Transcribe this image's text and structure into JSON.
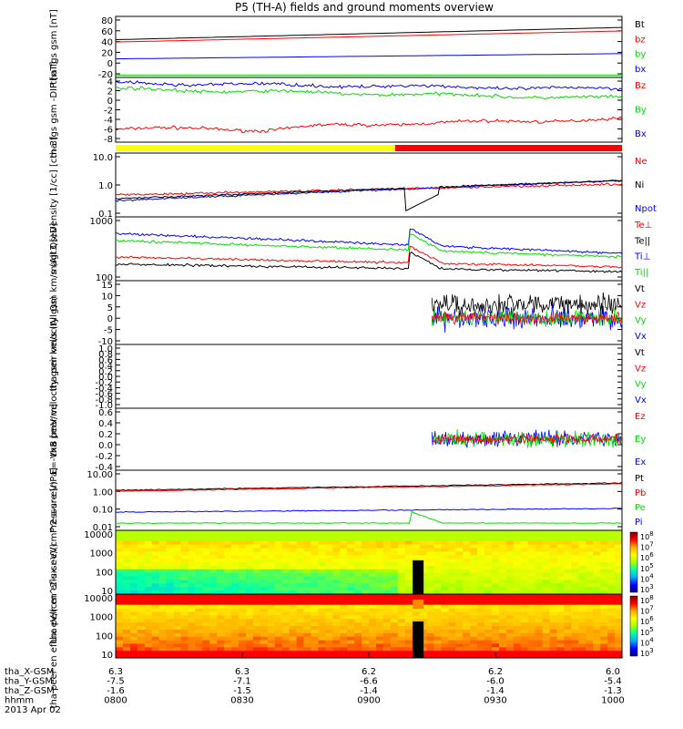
{
  "title": "P5 (TH-A) fields and ground moments overview",
  "colors": {
    "black": "#000000",
    "red": "#ff0000",
    "green": "#00dd00",
    "blue": "#0000ff",
    "yellow": "#ffff00"
  },
  "chart_data": [
    {
      "type": "line",
      "ylabel": "tha fgs gsm [nT]",
      "yticks": [
        "80",
        "60",
        "40",
        "20",
        "0",
        "-20"
      ],
      "ylim": [
        -20,
        85
      ],
      "x": [
        "0800",
        "0830",
        "0900",
        "0930",
        "1000"
      ],
      "series": [
        {
          "name": "Bt",
          "color": "#000000",
          "start": 45,
          "end": 66
        },
        {
          "name": "bz",
          "color": "#ff0000",
          "start": 41,
          "end": 60
        },
        {
          "name": "by",
          "color": "#00dd00",
          "start": -16,
          "end": -16
        },
        {
          "name": "bx",
          "color": "#0000ff",
          "start": 12,
          "end": 21
        }
      ]
    },
    {
      "type": "line",
      "ylabel": "tha fgs gsm -DIP [nT]",
      "yticks": [
        "4",
        "2",
        "0",
        "-2",
        "-4",
        "-6",
        "-8"
      ],
      "ylim": [
        -9.5,
        4.5
      ],
      "series": [
        {
          "name": "Bz",
          "color": "#ff0000",
          "start": -6.8,
          "end": -4.5
        },
        {
          "name": "By",
          "color": "#00dd00",
          "start": 2.0,
          "end": 0.0
        },
        {
          "name": "Bx",
          "color": "#0000ff",
          "start": 3.3,
          "end": 2.0
        }
      ]
    },
    {
      "type": "bar",
      "label": "mode bar",
      "segments": [
        {
          "color": "#ffff00",
          "end_fraction": 0.552
        },
        {
          "color": "#ff0000",
          "end_fraction": 1.0
        }
      ]
    },
    {
      "type": "line",
      "ylabel": "Density [1/cc] [cm-3]",
      "yticks": [
        "10.0",
        "1.0",
        "0.1"
      ],
      "log": true,
      "series": [
        {
          "name": "Ne",
          "color": "#ff0000"
        },
        {
          "name": "Ni",
          "color": "#000000"
        },
        {
          "name": "Npot",
          "color": "#0000ff"
        }
      ]
    },
    {
      "type": "line",
      "ylabel": "magt3 [eV]",
      "yticks": [
        "1000",
        "100"
      ],
      "log": true,
      "series": [
        {
          "name": "Te⊥",
          "color": "#ff0000"
        },
        {
          "name": "Te||",
          "color": "#000000"
        },
        {
          "name": "Ti⊥",
          "color": "#0000ff"
        },
        {
          "name": "Ti||",
          "color": "#00dd00"
        }
      ]
    },
    {
      "type": "line",
      "ylabel": "tha peir velocity gsm km/s (All Qs)",
      "yticks": [
        "15",
        "10",
        "5",
        "0",
        "-5",
        "-10"
      ],
      "series": [
        {
          "name": "Vt",
          "color": "#000000"
        },
        {
          "name": "Vz",
          "color": "#ff0000"
        },
        {
          "name": "Vy",
          "color": "#00dd00"
        },
        {
          "name": "Vx",
          "color": "#0000ff"
        }
      ]
    },
    {
      "type": "line",
      "ylabel": "tha peer velocity gsm km/s (All Qs)",
      "yticks": [
        "1.0",
        "0.8",
        "0.6",
        "0.4",
        "0.2",
        "0.0",
        "-0.2",
        "-0.4",
        "-0.6",
        "-0.8",
        "-1.0"
      ],
      "series": [
        {
          "name": "Vt",
          "color": "#000000"
        },
        {
          "name": "Vz",
          "color": "#ff0000"
        },
        {
          "name": "Vy",
          "color": "#00dd00"
        },
        {
          "name": "Vx",
          "color": "#0000ff"
        }
      ]
    },
    {
      "type": "line",
      "ylabel": "E=-VxB [mV/m]",
      "yticks": [
        "0.6",
        "0.4",
        "0.2",
        "0.0",
        "-0.2",
        "-0.4"
      ],
      "series": [
        {
          "name": "Ez",
          "color": "#ff0000"
        },
        {
          "name": "Ey",
          "color": "#00dd00"
        },
        {
          "name": "Ex",
          "color": "#0000ff"
        }
      ]
    },
    {
      "type": "line",
      "ylabel": "Pressure [nPa]",
      "yticks": [
        "10.00",
        "1.00",
        "0.10",
        "0.01"
      ],
      "log": true,
      "series": [
        {
          "name": "Pt",
          "color": "#000000"
        },
        {
          "name": "Pb",
          "color": "#ff0000"
        },
        {
          "name": "Pe",
          "color": "#00dd00"
        },
        {
          "name": "Pi",
          "color": "#0000ff"
        }
      ]
    },
    {
      "type": "heatmap",
      "ylabel": "tha peir en eflux eV/(cm^2-s-sr-eV)",
      "yticks": [
        "10000",
        "1000",
        "100",
        "10"
      ],
      "colorbar_ticks": [
        "8",
        "7",
        "6",
        "5",
        "4",
        "3"
      ]
    },
    {
      "type": "heatmap",
      "ylabel": "tha peer en eflux eV/(cm^2-s-sr-eV)",
      "yticks": [
        "10000",
        "1000",
        "100",
        "10"
      ],
      "colorbar_ticks": [
        "8",
        "7",
        "6",
        "5",
        "4",
        "3"
      ]
    }
  ],
  "xaxis": {
    "labels": [
      "tha_X-GSM",
      "tha_Y-GSM",
      "tha_Z-GSM",
      "hhmm",
      "2013 Apr 02"
    ],
    "rows": [
      [
        "6.3",
        "6.3",
        "6.2",
        "6.2",
        "6.0"
      ],
      [
        "-7.5",
        "-7.1",
        "-6.6",
        "-6.0",
        "-5.4"
      ],
      [
        "-1.6",
        "-1.5",
        "-1.4",
        "-1.4",
        "-1.3"
      ],
      [
        "0800",
        "0830",
        "0900",
        "0930",
        "1000"
      ]
    ]
  }
}
